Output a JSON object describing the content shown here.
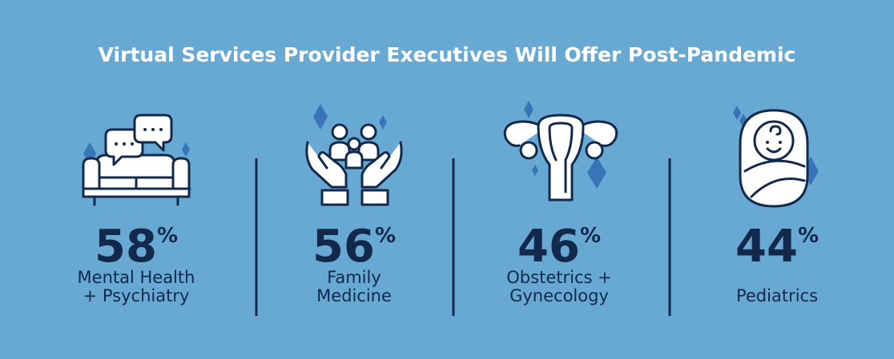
{
  "title": "Virtual Services Provider Executives Will Offer Post-Pandemic",
  "items": [
    {
      "value": 58,
      "unit": "%",
      "label": [
        "Mental Health",
        "+ Psychiatry"
      ]
    },
    {
      "value": 56,
      "unit": "%",
      "label": [
        "Family",
        "Medicine"
      ]
    },
    {
      "value": 46,
      "unit": "%",
      "label": [
        "Obstetrics +",
        "Gynecology"
      ]
    },
    {
      "value": 44,
      "unit": "%",
      "label": [
        "Pediatrics"
      ]
    }
  ]
}
